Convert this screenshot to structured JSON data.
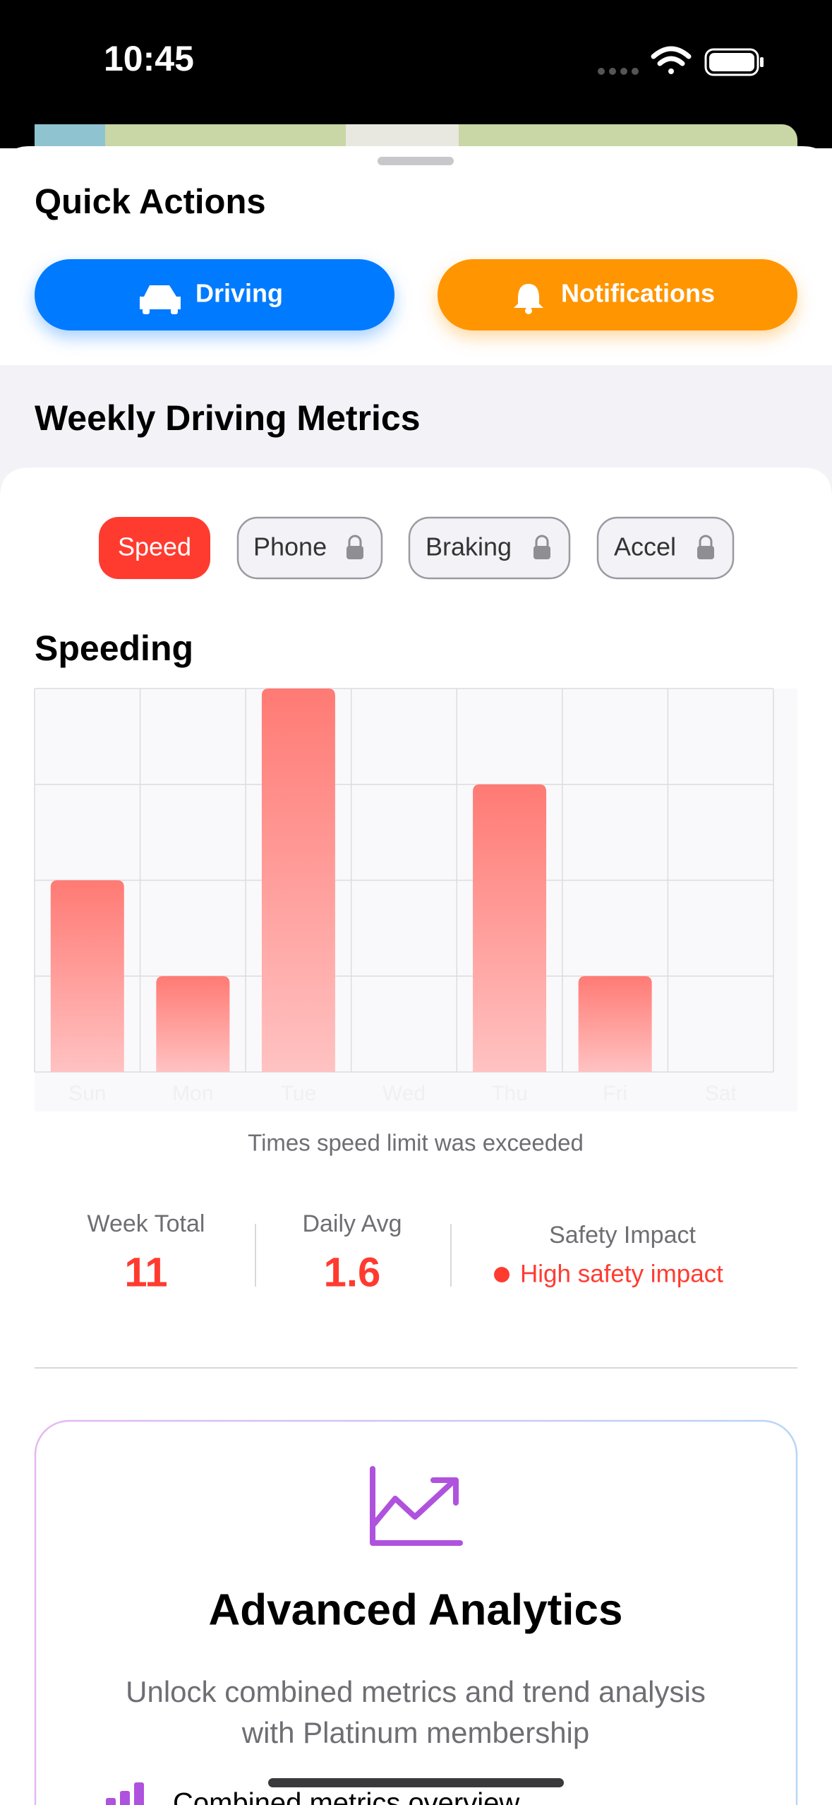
{
  "status_bar": {
    "time": "10:45"
  },
  "quick_actions": {
    "title": "Quick Actions",
    "buttons": [
      "Driving",
      "Notifications"
    ]
  },
  "weekly_metrics": {
    "title": "Weekly Driving Metrics",
    "tabs": [
      "Speed",
      "Phone",
      "Braking",
      "Accel"
    ]
  },
  "chart_data": {
    "type": "bar",
    "title": "Speeding",
    "categories": [
      "Sun",
      "Mon",
      "Tue",
      "Wed",
      "Thu",
      "Fri",
      "Sat"
    ],
    "values": [
      2,
      1,
      4,
      0,
      3,
      1,
      0
    ],
    "color": "#ff6b63",
    "ylim": [
      0,
      4
    ],
    "yticks": [
      0,
      1,
      2,
      3,
      4
    ],
    "grid": true,
    "caption": "Times speed limit was exceeded"
  },
  "stats": [
    {
      "label": "Week Total",
      "value": 11
    },
    {
      "label": "Daily Avg",
      "value": 1.6
    }
  ],
  "safety": {
    "label": "Safety Impact",
    "value": "High safety impact"
  },
  "promo": {
    "title": "Advanced Analytics",
    "subtitle_lines": [
      "Unlock combined metrics and trend analysis",
      "with Platinum membership"
    ],
    "features": [
      "Combined metrics overview"
    ]
  }
}
